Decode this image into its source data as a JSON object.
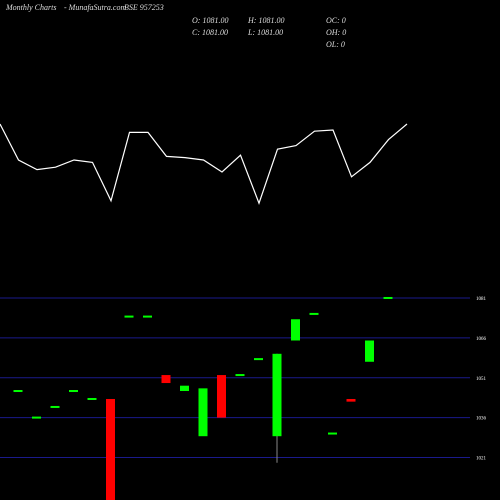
{
  "chart_data": [
    {
      "type": "line",
      "title": "Monthly Charts",
      "subtitle": "- MunafaSutra.com",
      "symbol": "BSE 957253",
      "annotations": [
        "O: 1081.00",
        "H: 1081.00",
        "OC: 0",
        "C: 1081.00",
        "L: 1081.00",
        "OH: 0",
        "OL: 0"
      ],
      "values": [
        80,
        50,
        42,
        44,
        50,
        48,
        16,
        73,
        73,
        53,
        52,
        50,
        40,
        54,
        14,
        59,
        62,
        74,
        75,
        36,
        48,
        67,
        80
      ],
      "ylim": [
        0,
        100
      ],
      "color": "#ffffff"
    },
    {
      "type": "candlestick",
      "open": [
        1046,
        1036,
        1040,
        1046,
        1043,
        1043,
        1074,
        1074,
        1052,
        1046,
        1029,
        1052,
        1052,
        1058,
        1029,
        1065,
        1075,
        1030,
        1043,
        1057,
        1081
      ],
      "close": [
        1046,
        1036,
        1040,
        1046,
        1043,
        1005,
        1074,
        1074,
        1049,
        1048,
        1047,
        1036,
        1052,
        1058,
        1060,
        1073,
        1075,
        1030,
        1042,
        1065,
        1081
      ],
      "high": [
        1046,
        1036,
        1040,
        1046,
        1043,
        1043,
        1074,
        1074,
        1052,
        1048,
        1047,
        1052,
        1052,
        1058,
        1060,
        1073,
        1075,
        1030,
        1043,
        1065,
        1081
      ],
      "low": [
        1046,
        1036,
        1040,
        1046,
        1043,
        1005,
        1074,
        1074,
        1049,
        1046,
        1029,
        1036,
        1052,
        1058,
        1019,
        1065,
        1075,
        1030,
        1042,
        1057,
        1081
      ],
      "ylim": [
        1005,
        1084
      ],
      "yticks": [
        1081,
        1066,
        1051,
        1036,
        1021
      ],
      "grid": true,
      "up_color": "#00ff00",
      "down_color": "#ff0000",
      "grid_color": "#1a1a8c"
    }
  ]
}
